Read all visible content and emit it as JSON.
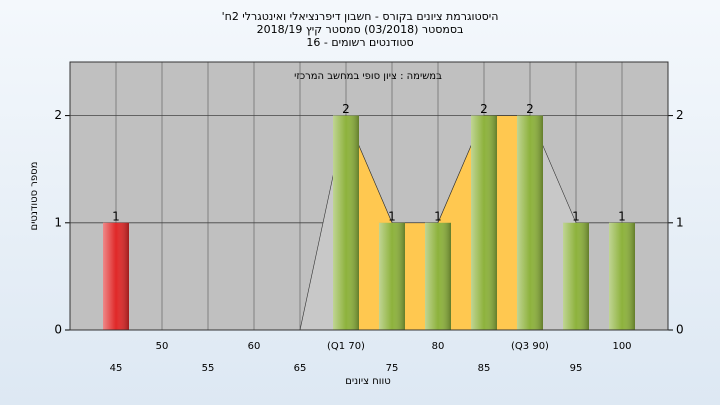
{
  "chart_data": {
    "type": "bar",
    "title": [
      "היסטוגרמת ציונים בקורס - חשבון דיפרנציאלי ואינטגרלי 2ח'",
      "בסמסטר (03/2018) סמסטר קיץ 2018/19",
      "סטודנטים רשומים - 16"
    ],
    "subtitle": "במשימה : ציון סופי במחשב המרכזי",
    "x_label": "טווח ציונים",
    "y_label": "מספר סטודנטים",
    "categories": [
      "45",
      "50",
      "55",
      "60",
      "65",
      "(Q1 70)",
      "75",
      "80",
      "85",
      "(Q3 90)",
      "95",
      "100"
    ],
    "values": [
      1,
      0,
      0,
      0,
      0,
      2,
      1,
      1,
      2,
      2,
      1,
      1
    ],
    "colors": [
      "#e02828",
      "#8db23c",
      "#8db23c",
      "#8db23c",
      "#8db23c",
      "#8db23c",
      "#8db23c",
      "#8db23c",
      "#8db23c",
      "#8db23c",
      "#8db23c",
      "#8db23c"
    ],
    "area_color": "#ffc850",
    "ylim": [
      0,
      2.5
    ],
    "yticks": [
      0,
      1,
      2
    ],
    "grid": true
  }
}
